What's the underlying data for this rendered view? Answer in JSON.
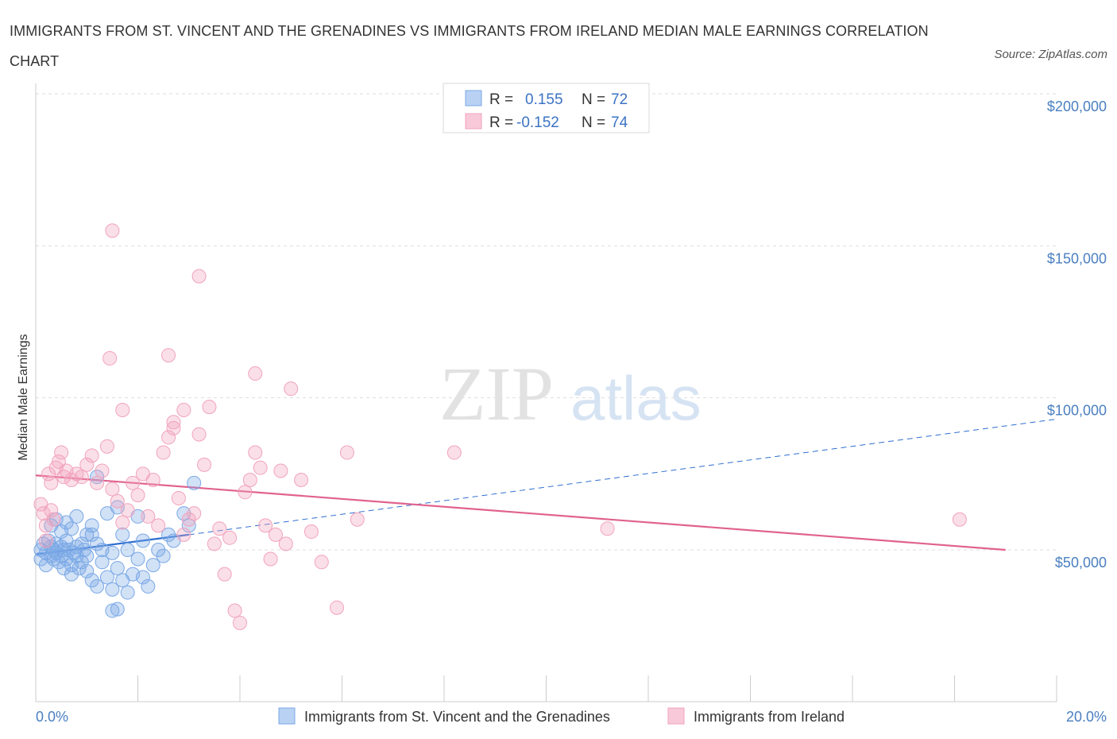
{
  "title": "IMMIGRANTS FROM ST. VINCENT AND THE GRENADINES VS IMMIGRANTS FROM IRELAND MEDIAN MALE EARNINGS CORRELATION CHART",
  "source": "Source: ZipAtlas.com",
  "watermark": {
    "zip": "ZIP",
    "atlas": "atlas"
  },
  "legend": {
    "rows": [
      {
        "r_label": "R =",
        "r_value": "0.155",
        "n_label": "N =",
        "n_value": "72"
      },
      {
        "r_label": "R =",
        "r_value": "-0.152",
        "n_label": "N =",
        "n_value": "74"
      }
    ]
  },
  "chart_data": {
    "type": "scatter",
    "title": "IMMIGRANTS FROM ST. VINCENT AND THE GRENADINES VS IMMIGRANTS FROM IRELAND MEDIAN MALE EARNINGS CORRELATION CHART",
    "xlabel": "",
    "ylabel": "Median Male Earnings",
    "xlim": [
      0,
      20
    ],
    "ylim": [
      0,
      200000
    ],
    "x_tick_labels": [
      "0.0%",
      "20.0%"
    ],
    "y_tick_labels": [
      "$200,000",
      "$150,000",
      "$100,000",
      "$50,000"
    ],
    "y_ticks": [
      200000,
      150000,
      100000,
      50000
    ],
    "grid": true,
    "legend_position": "top-center",
    "series": [
      {
        "name": "Immigrants from St. Vincent and the Grenadines",
        "color": "#7aa8e6",
        "trend_color": "#2f6fd0",
        "R": 0.155,
        "N": 72,
        "trend": {
          "x": [
            0,
            3
          ],
          "y": [
            48500,
            55000
          ],
          "extend_to_x": 20,
          "extend_y": 93000
        },
        "points": [
          [
            0.1,
            50000
          ],
          [
            0.1,
            47000
          ],
          [
            0.15,
            52000
          ],
          [
            0.2,
            49000
          ],
          [
            0.2,
            45000
          ],
          [
            0.25,
            53000
          ],
          [
            0.3,
            51000
          ],
          [
            0.3,
            48000
          ],
          [
            0.35,
            50000
          ],
          [
            0.35,
            47000
          ],
          [
            0.4,
            52000
          ],
          [
            0.4,
            49000
          ],
          [
            0.45,
            46000
          ],
          [
            0.5,
            51000
          ],
          [
            0.5,
            48000
          ],
          [
            0.55,
            50000
          ],
          [
            0.55,
            44000
          ],
          [
            0.6,
            53000
          ],
          [
            0.6,
            47000
          ],
          [
            0.65,
            50000
          ],
          [
            0.7,
            45000
          ],
          [
            0.7,
            42000
          ],
          [
            0.75,
            49000
          ],
          [
            0.8,
            51000
          ],
          [
            0.8,
            48000
          ],
          [
            0.85,
            44000
          ],
          [
            0.9,
            52000
          ],
          [
            0.9,
            46000
          ],
          [
            0.95,
            50000
          ],
          [
            1.0,
            48000
          ],
          [
            1.0,
            43000
          ],
          [
            1.1,
            55000
          ],
          [
            1.1,
            40000
          ],
          [
            1.2,
            52000
          ],
          [
            1.2,
            38000
          ],
          [
            1.3,
            50000
          ],
          [
            1.3,
            46000
          ],
          [
            1.4,
            41000
          ],
          [
            1.5,
            49000
          ],
          [
            1.5,
            37000
          ],
          [
            1.6,
            44000
          ],
          [
            1.7,
            40000
          ],
          [
            1.8,
            50000
          ],
          [
            1.8,
            36000
          ],
          [
            1.9,
            42000
          ],
          [
            2.0,
            47000
          ],
          [
            2.1,
            53000
          ],
          [
            2.1,
            41000
          ],
          [
            2.2,
            38000
          ],
          [
            2.3,
            45000
          ],
          [
            2.4,
            50000
          ],
          [
            2.5,
            48000
          ],
          [
            0.3,
            58000
          ],
          [
            0.4,
            60000
          ],
          [
            0.5,
            56000
          ],
          [
            0.6,
            59000
          ],
          [
            0.7,
            57000
          ],
          [
            0.8,
            61000
          ],
          [
            1.0,
            55000
          ],
          [
            1.1,
            58000
          ],
          [
            1.4,
            62000
          ],
          [
            1.6,
            64000
          ],
          [
            1.7,
            55000
          ],
          [
            2.0,
            61000
          ],
          [
            2.6,
            55000
          ],
          [
            2.7,
            53000
          ],
          [
            2.9,
            62000
          ],
          [
            3.0,
            58000
          ],
          [
            3.1,
            72000
          ],
          [
            1.2,
            74000
          ],
          [
            1.5,
            30000
          ],
          [
            1.6,
            30500
          ]
        ]
      },
      {
        "name": "Immigrants from Ireland",
        "color": "#f2a3bc",
        "trend_color": "#e0628f",
        "R": -0.152,
        "N": 74,
        "trend": {
          "x": [
            0,
            19
          ],
          "y": [
            74500,
            50000
          ]
        },
        "points": [
          [
            0.1,
            65000
          ],
          [
            0.15,
            62000
          ],
          [
            0.2,
            58000
          ],
          [
            0.2,
            53000
          ],
          [
            0.25,
            75000
          ],
          [
            0.3,
            72000
          ],
          [
            0.35,
            60000
          ],
          [
            0.4,
            77000
          ],
          [
            0.45,
            79000
          ],
          [
            0.5,
            82000
          ],
          [
            0.55,
            74000
          ],
          [
            0.6,
            76000
          ],
          [
            0.7,
            73000
          ],
          [
            0.8,
            75000
          ],
          [
            0.9,
            74000
          ],
          [
            1.0,
            78000
          ],
          [
            1.1,
            81000
          ],
          [
            1.2,
            72000
          ],
          [
            1.3,
            76000
          ],
          [
            1.4,
            84000
          ],
          [
            1.5,
            70000
          ],
          [
            1.6,
            66000
          ],
          [
            1.7,
            59000
          ],
          [
            1.8,
            63000
          ],
          [
            1.9,
            72000
          ],
          [
            2.0,
            68000
          ],
          [
            2.1,
            75000
          ],
          [
            2.2,
            61000
          ],
          [
            2.3,
            73000
          ],
          [
            2.4,
            58000
          ],
          [
            2.5,
            82000
          ],
          [
            2.6,
            87000
          ],
          [
            2.7,
            90000
          ],
          [
            2.8,
            67000
          ],
          [
            2.9,
            55000
          ],
          [
            3.0,
            60000
          ],
          [
            3.1,
            62000
          ],
          [
            3.2,
            88000
          ],
          [
            3.3,
            78000
          ],
          [
            3.4,
            97000
          ],
          [
            3.5,
            52000
          ],
          [
            3.6,
            57000
          ],
          [
            3.7,
            42000
          ],
          [
            3.8,
            54000
          ],
          [
            3.9,
            30000
          ],
          [
            4.0,
            26000
          ],
          [
            4.1,
            69000
          ],
          [
            4.2,
            73000
          ],
          [
            4.3,
            82000
          ],
          [
            4.4,
            77000
          ],
          [
            4.5,
            58000
          ],
          [
            4.6,
            47000
          ],
          [
            4.7,
            55000
          ],
          [
            4.8,
            76000
          ],
          [
            4.9,
            52000
          ],
          [
            5.0,
            103000
          ],
          [
            5.2,
            73000
          ],
          [
            5.4,
            56000
          ],
          [
            5.6,
            46000
          ],
          [
            5.9,
            31000
          ],
          [
            6.1,
            82000
          ],
          [
            6.3,
            60000
          ],
          [
            8.2,
            82000
          ],
          [
            11.2,
            57000
          ],
          [
            18.1,
            60000
          ],
          [
            1.5,
            155000
          ],
          [
            3.2,
            140000
          ],
          [
            1.45,
            113000
          ],
          [
            2.6,
            114000
          ],
          [
            4.3,
            108000
          ],
          [
            1.7,
            96000
          ],
          [
            2.7,
            92000
          ],
          [
            2.9,
            96000
          ],
          [
            0.3,
            63000
          ]
        ]
      }
    ]
  },
  "bottom_legend": [
    {
      "label": "Immigrants from St. Vincent and the Grenadines",
      "color": "#7aa8e6"
    },
    {
      "label": "Immigrants from Ireland",
      "color": "#f2a3bc"
    }
  ]
}
